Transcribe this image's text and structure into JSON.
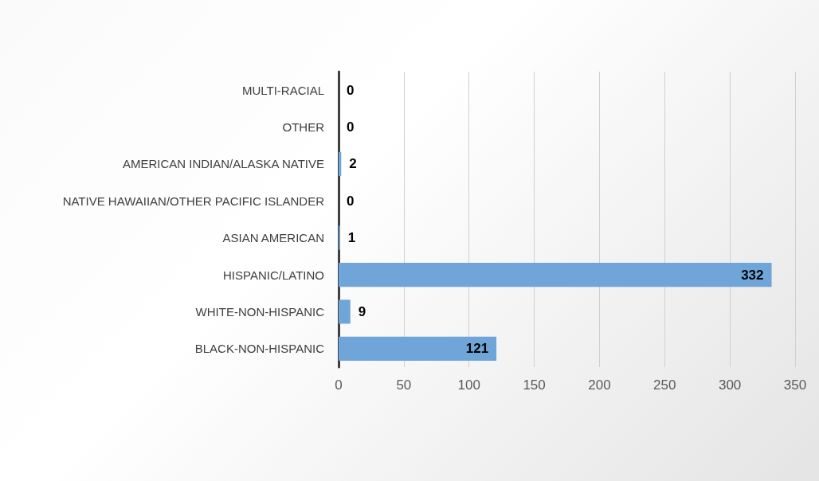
{
  "chart_data": {
    "type": "bar",
    "orientation": "horizontal",
    "categories": [
      "MULTI-RACIAL",
      "OTHER",
      "AMERICAN INDIAN/ALASKA NATIVE",
      "NATIVE HAWAIIAN/OTHER PACIFIC ISLANDER",
      "ASIAN AMERICAN",
      "HISPANIC/LATINO",
      "WHITE-NON-HISPANIC",
      "BLACK-NON-HISPANIC"
    ],
    "values": [
      0,
      0,
      2,
      0,
      1,
      332,
      9,
      121
    ],
    "color": "#6fa5d8",
    "xlim": [
      0,
      350
    ],
    "xticks": [
      0,
      50,
      100,
      150,
      200,
      250,
      300,
      350
    ],
    "grid": "x",
    "data_labels": true
  }
}
